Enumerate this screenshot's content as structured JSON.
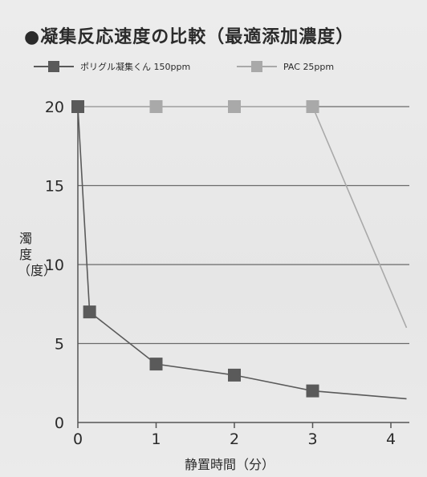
{
  "chart_data": {
    "type": "line",
    "title": "●凝集反応速度の比較（最適添加濃度）",
    "xlabel": "静置時間（分）",
    "ylabel": "濁度（度）",
    "xlim": [
      0,
      4.2
    ],
    "ylim": [
      0,
      20
    ],
    "x_ticks": [
      "0",
      "1",
      "2",
      "3",
      "4"
    ],
    "y_ticks": [
      "0",
      "5",
      "10",
      "15",
      "20"
    ],
    "grid": "horizontal",
    "legend": "top",
    "series": [
      {
        "name": "ポリグル凝集くん 150ppm",
        "color": "#5a5a5a",
        "x": [
          0,
          0.15,
          1,
          2,
          3,
          4.2
        ],
        "y": [
          20,
          7,
          3.7,
          3,
          2,
          1.5
        ],
        "marker_x": [
          0,
          0.15,
          1,
          2,
          3
        ],
        "marker_y": [
          20,
          7,
          3.7,
          3,
          2
        ]
      },
      {
        "name": "PAC 25ppm",
        "color": "#a9a9a9",
        "x": [
          0,
          1,
          2,
          3,
          4.2
        ],
        "y": [
          20,
          20,
          20,
          20,
          6
        ],
        "marker_x": [
          0,
          1,
          2,
          3
        ],
        "marker_y": [
          20,
          20,
          20,
          20
        ]
      }
    ]
  }
}
